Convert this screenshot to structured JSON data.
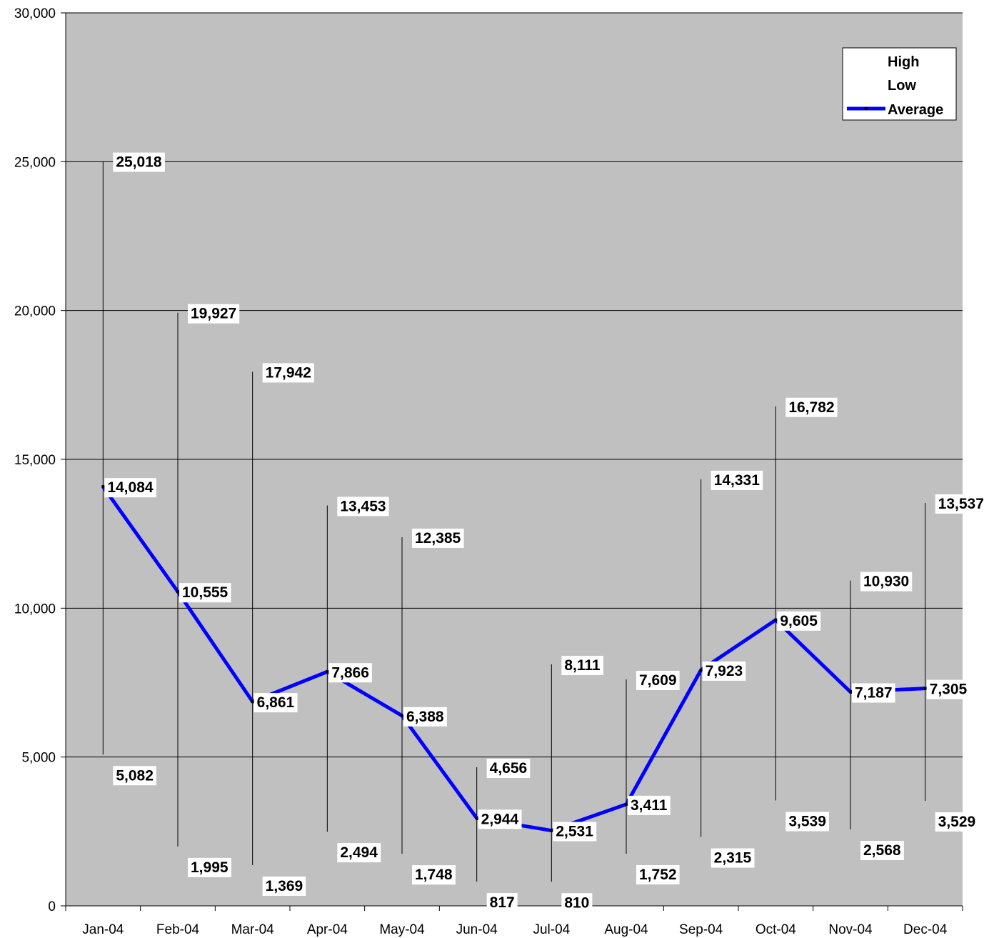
{
  "chart_data": {
    "type": "line",
    "subtype": "high-low-average",
    "title": "",
    "xlabel": "",
    "ylabel": "",
    "ylim": [
      0,
      30000
    ],
    "yticks": [
      0,
      5000,
      10000,
      15000,
      20000,
      25000,
      30000
    ],
    "ytick_labels": [
      "0",
      "5,000",
      "10,000",
      "15,000",
      "20,000",
      "25,000",
      "30,000"
    ],
    "grid": true,
    "plot_background": "#c0c0c0",
    "legend_position": "top-right",
    "categories": [
      "Jan-04",
      "Feb-04",
      "Mar-04",
      "Apr-04",
      "May-04",
      "Jun-04",
      "Jul-04",
      "Aug-04",
      "Sep-04",
      "Oct-04",
      "Nov-04",
      "Dec-04"
    ],
    "series": [
      {
        "name": "High",
        "color": "#000000",
        "values": [
          25018,
          19927,
          17942,
          13453,
          12385,
          4656,
          8111,
          7609,
          14331,
          16782,
          10930,
          13537
        ],
        "labels": [
          "25,018",
          "19,927",
          "17,942",
          "13,453",
          "12,385",
          "4,656",
          "8,111",
          "7,609",
          "14,331",
          "16,782",
          "10,930",
          "13,537"
        ]
      },
      {
        "name": "Low",
        "color": "#000000",
        "values": [
          5082,
          1995,
          1369,
          2494,
          1748,
          817,
          810,
          1752,
          2315,
          3539,
          2568,
          3529
        ],
        "labels": [
          "5,082",
          "1,995",
          "1,369",
          "2,494",
          "1,748",
          "817",
          "810",
          "1,752",
          "2,315",
          "3,539",
          "2,568",
          "3,529"
        ]
      },
      {
        "name": "Average",
        "color": "#0000ff",
        "values": [
          14084,
          10555,
          6861,
          7866,
          6388,
          2944,
          2531,
          3411,
          7923,
          9605,
          7187,
          7305
        ],
        "labels": [
          "14,084",
          "10,555",
          "6,861",
          "7,866",
          "6,388",
          "2,944",
          "2,531",
          "3,411",
          "7,923",
          "9,605",
          "7,187",
          "7,305"
        ]
      }
    ]
  }
}
